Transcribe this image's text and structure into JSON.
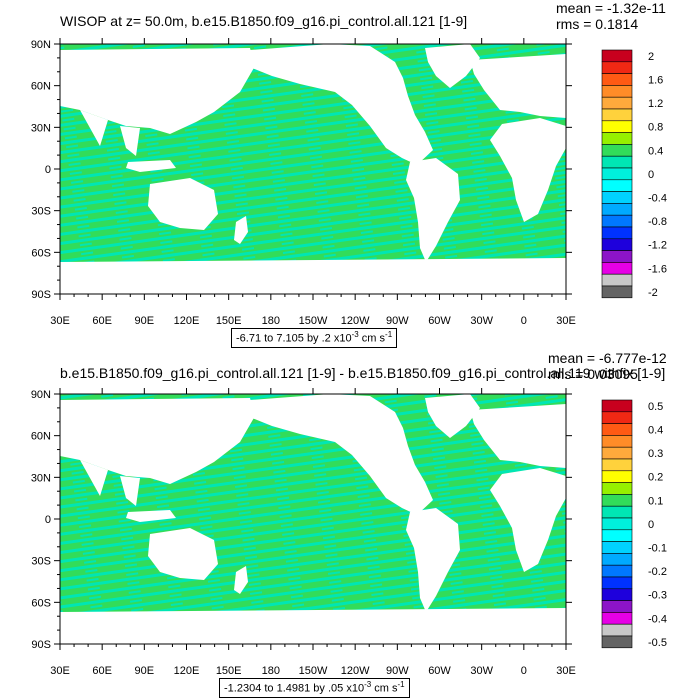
{
  "chart_data": [
    {
      "type": "heatmap",
      "title": "WISOP at z=  50.0m, b.e15.B1850.f09_g16.pi_control.all.121 [1-9]",
      "stats": {
        "mean": "mean = -1.32e-11",
        "rms": "rms = 0.1814"
      },
      "x_ticks": [
        "30E",
        "60E",
        "90E",
        "120E",
        "150E",
        "180",
        "150W",
        "120W",
        "90W",
        "60W",
        "30W",
        "0",
        "30E"
      ],
      "y_ticks": [
        "90N",
        "60N",
        "30N",
        "0",
        "30S",
        "60S",
        "90S"
      ],
      "scale_text": {
        "range": "-6.71 to 7.105 by .2",
        "mult": "x10",
        "exp": "-3",
        "unit": "cm s",
        "unit_exp": "-1"
      },
      "legend": {
        "labels": [
          "2",
          "1.6",
          "1.2",
          "0.8",
          "0.4",
          "0",
          "-0.4",
          "-0.8",
          "-1.2",
          "-1.6",
          "-2"
        ],
        "colors": [
          "#c8001e",
          "#f02814",
          "#ff5a14",
          "#ff8c28",
          "#ffaa3c",
          "#ffd23c",
          "#ffff00",
          "#96f000",
          "#32dc5a",
          "#00e6b4",
          "#00f0dc",
          "#00ffff",
          "#00d2ff",
          "#00aaff",
          "#0078ff",
          "#0032ff",
          "#1e00dc",
          "#8c14c8",
          "#e600e6",
          "#c8c8c8",
          "#646464"
        ]
      }
    },
    {
      "type": "heatmap",
      "title": "b.e15.B1850.f09_g16.pi_control.all.121 [1-9] - b.e15.B1850.f09_g16.pi_control.all.119 withfix [1-9]",
      "stats": {
        "mean": "mean = -6.777e-12",
        "rms": "rms = 0.03095"
      },
      "x_ticks": [
        "30E",
        "60E",
        "90E",
        "120E",
        "150E",
        "180",
        "150W",
        "120W",
        "90W",
        "60W",
        "30W",
        "0",
        "30E"
      ],
      "y_ticks": [
        "90N",
        "60N",
        "30N",
        "0",
        "30S",
        "60S",
        "90S"
      ],
      "scale_text": {
        "range": "-1.2304 to 1.4981 by .05",
        "mult": "x10",
        "exp": "-3",
        "unit": "cm s",
        "unit_exp": "-1"
      },
      "legend": {
        "labels": [
          "0.5",
          "0.4",
          "0.3",
          "0.2",
          "0.1",
          "0",
          "-0.1",
          "-0.2",
          "-0.3",
          "-0.4",
          "-0.5"
        ],
        "colors": [
          "#c8001e",
          "#f02814",
          "#ff5a14",
          "#ff8c28",
          "#ffaa3c",
          "#ffd23c",
          "#ffff00",
          "#96f000",
          "#32dc5a",
          "#00e6b4",
          "#00f0dc",
          "#00ffff",
          "#00d2ff",
          "#00aaff",
          "#0078ff",
          "#0032ff",
          "#1e00dc",
          "#8c14c8",
          "#e600e6",
          "#c8c8c8",
          "#646464"
        ]
      }
    }
  ],
  "colors": {
    "ocean_main": "#32dc5a",
    "ocean_alt": "#00e6b4",
    "land": "#ffffff"
  }
}
